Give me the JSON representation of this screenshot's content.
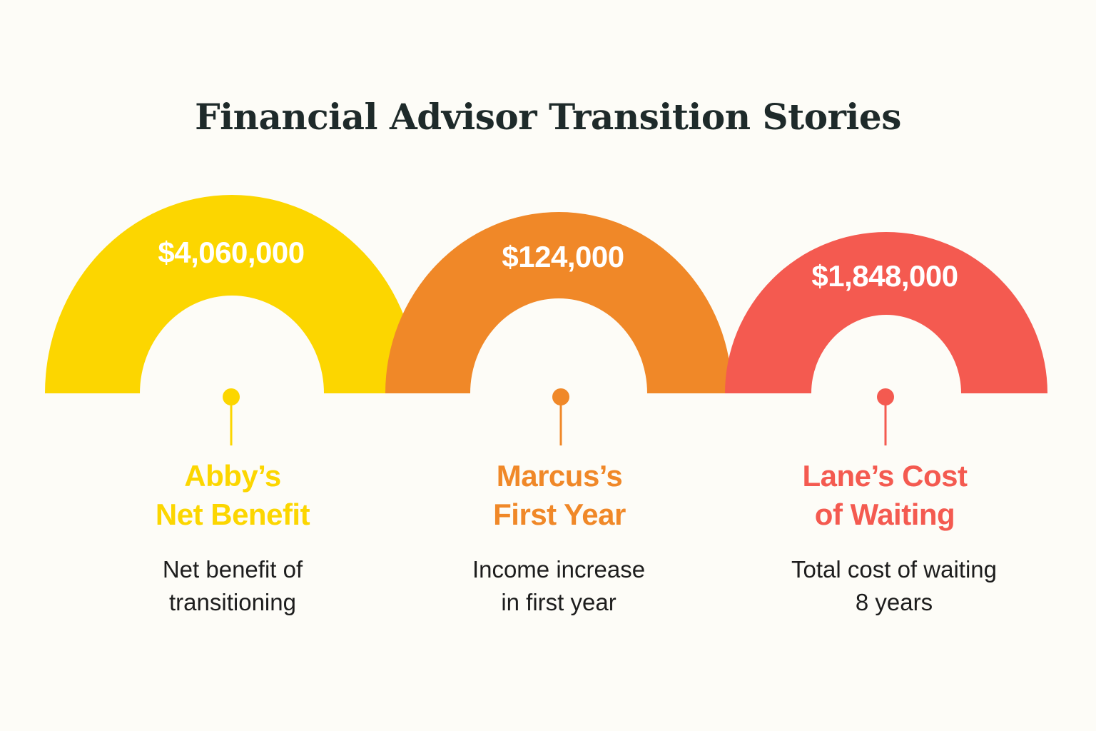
{
  "title": "Financial Advisor Transition Stories",
  "stories": [
    {
      "amount": "$4,060,000",
      "title_line1": "Abby’s",
      "title_line2": "Net Benefit",
      "desc_line1": "Net benefit of",
      "desc_line2": "transitioning",
      "color": "#fcd600"
    },
    {
      "amount": "$124,000",
      "title_line1": "Marcus’s",
      "title_line2": "First Year",
      "desc_line1": "Income increase",
      "desc_line2": "in first year",
      "color": "#f08828"
    },
    {
      "amount": "$1,848,000",
      "title_line1": "Lane’s Cost",
      "title_line2": "of Waiting",
      "desc_line1": "Total cost of waiting",
      "desc_line2": "8 years",
      "color": "#f45a50"
    }
  ]
}
